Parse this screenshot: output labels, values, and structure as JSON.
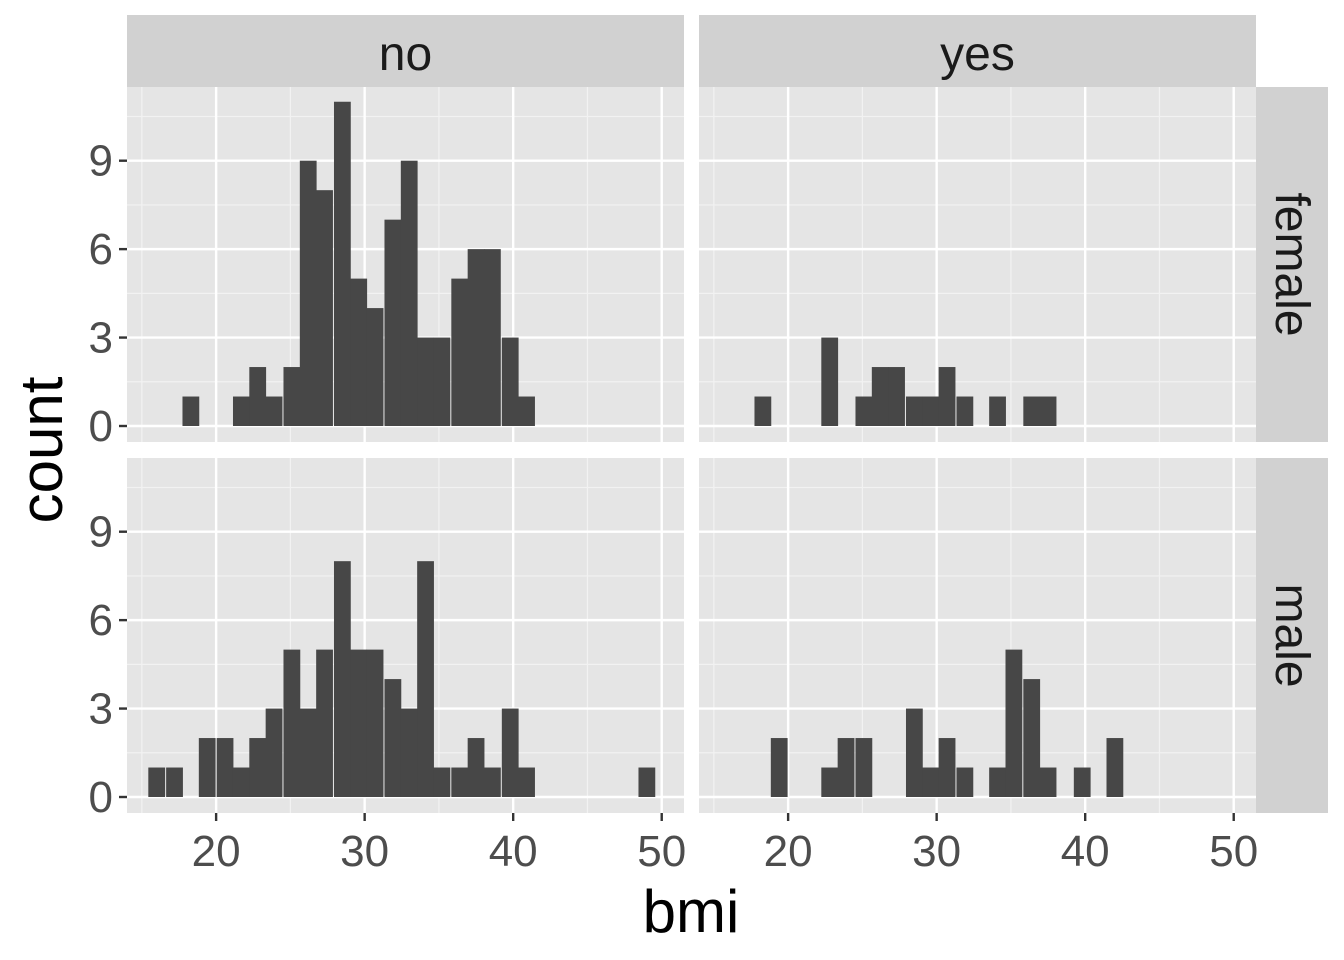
{
  "chart_data": {
    "type": "histogram",
    "facet_rows": [
      "female",
      "male"
    ],
    "facet_cols": [
      "no",
      "yes"
    ],
    "xlabel": "bmi",
    "ylabel": "count",
    "xlim": [
      14,
      51.5
    ],
    "ylim": [
      0,
      11.5
    ],
    "x_breaks": [
      20,
      30,
      40,
      50
    ],
    "y_breaks": [
      0,
      3,
      6,
      9
    ],
    "bin_width": 1.13,
    "bin_origin": 15.51,
    "grid": true,
    "bar_color": "#474747",
    "panel_background": "#e5e5e5",
    "strip_background": "#d1d1d1",
    "panels": [
      {
        "row": "female",
        "col": "no",
        "bins": [
          {
            "x": 18.3,
            "count": 1
          },
          {
            "x": 21.7,
            "count": 1
          },
          {
            "x": 22.8,
            "count": 2
          },
          {
            "x": 23.9,
            "count": 1
          },
          {
            "x": 25.1,
            "count": 2
          },
          {
            "x": 26.2,
            "count": 9
          },
          {
            "x": 27.3,
            "count": 8
          },
          {
            "x": 28.5,
            "count": 11
          },
          {
            "x": 29.6,
            "count": 5
          },
          {
            "x": 30.7,
            "count": 4
          },
          {
            "x": 31.9,
            "count": 7
          },
          {
            "x": 33.0,
            "count": 9
          },
          {
            "x": 34.1,
            "count": 3
          },
          {
            "x": 35.2,
            "count": 3
          },
          {
            "x": 36.4,
            "count": 5
          },
          {
            "x": 37.5,
            "count": 6
          },
          {
            "x": 38.6,
            "count": 6
          },
          {
            "x": 39.8,
            "count": 3
          },
          {
            "x": 40.9,
            "count": 1
          }
        ]
      },
      {
        "row": "female",
        "col": "yes",
        "bins": [
          {
            "x": 18.3,
            "count": 1
          },
          {
            "x": 22.8,
            "count": 3
          },
          {
            "x": 25.1,
            "count": 1
          },
          {
            "x": 26.2,
            "count": 2
          },
          {
            "x": 27.3,
            "count": 2
          },
          {
            "x": 28.5,
            "count": 1
          },
          {
            "x": 29.6,
            "count": 1
          },
          {
            "x": 30.7,
            "count": 2
          },
          {
            "x": 31.9,
            "count": 1
          },
          {
            "x": 34.1,
            "count": 1
          },
          {
            "x": 36.4,
            "count": 1
          },
          {
            "x": 37.5,
            "count": 1
          }
        ]
      },
      {
        "row": "male",
        "col": "no",
        "bins": [
          {
            "x": 16.0,
            "count": 1
          },
          {
            "x": 17.2,
            "count": 1
          },
          {
            "x": 19.4,
            "count": 2
          },
          {
            "x": 20.6,
            "count": 2
          },
          {
            "x": 21.7,
            "count": 1
          },
          {
            "x": 22.8,
            "count": 2
          },
          {
            "x": 23.9,
            "count": 3
          },
          {
            "x": 25.1,
            "count": 5
          },
          {
            "x": 26.2,
            "count": 3
          },
          {
            "x": 27.3,
            "count": 5
          },
          {
            "x": 28.5,
            "count": 8
          },
          {
            "x": 29.6,
            "count": 5
          },
          {
            "x": 30.7,
            "count": 5
          },
          {
            "x": 31.9,
            "count": 4
          },
          {
            "x": 33.0,
            "count": 3
          },
          {
            "x": 34.1,
            "count": 8
          },
          {
            "x": 35.2,
            "count": 1
          },
          {
            "x": 36.4,
            "count": 1
          },
          {
            "x": 37.5,
            "count": 2
          },
          {
            "x": 38.6,
            "count": 1
          },
          {
            "x": 39.8,
            "count": 3
          },
          {
            "x": 40.9,
            "count": 1
          },
          {
            "x": 49.0,
            "count": 1
          }
        ]
      },
      {
        "row": "male",
        "col": "yes",
        "bins": [
          {
            "x": 19.4,
            "count": 2
          },
          {
            "x": 22.8,
            "count": 1
          },
          {
            "x": 23.9,
            "count": 2
          },
          {
            "x": 25.1,
            "count": 2
          },
          {
            "x": 28.5,
            "count": 3
          },
          {
            "x": 29.6,
            "count": 1
          },
          {
            "x": 30.7,
            "count": 2
          },
          {
            "x": 31.9,
            "count": 1
          },
          {
            "x": 34.1,
            "count": 1
          },
          {
            "x": 35.2,
            "count": 5
          },
          {
            "x": 36.4,
            "count": 4
          },
          {
            "x": 37.5,
            "count": 1
          },
          {
            "x": 39.8,
            "count": 1
          },
          {
            "x": 42.0,
            "count": 2
          }
        ]
      }
    ]
  }
}
